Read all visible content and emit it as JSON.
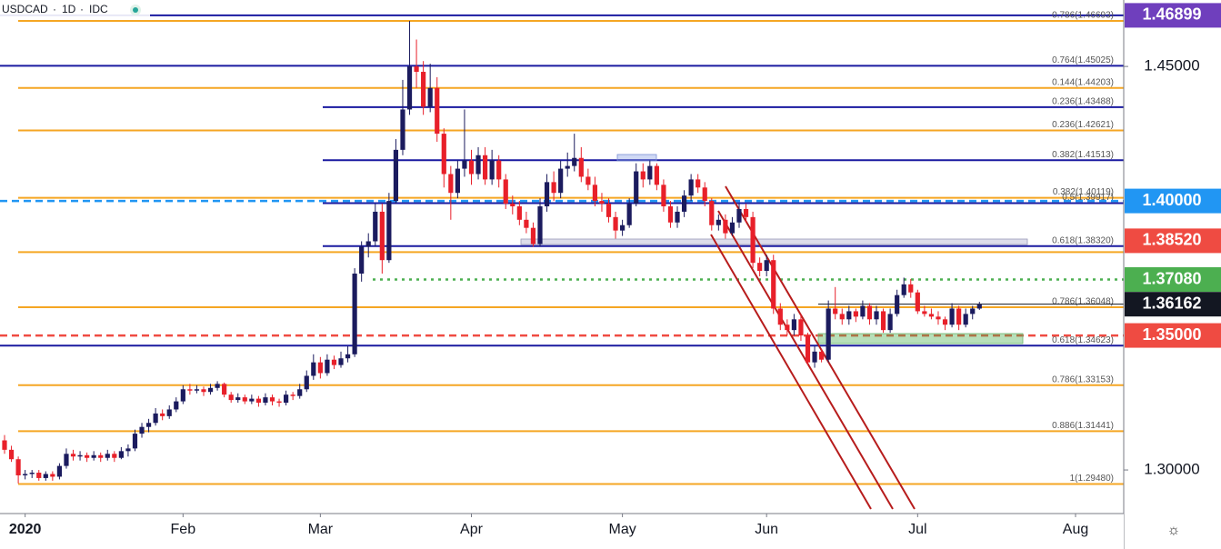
{
  "chart_data": {
    "type": "candlestick",
    "symbol": "USDCAD",
    "interval": "1D",
    "source": "IDC",
    "up_color": "#1b1b5e",
    "down_color": "#e8202a",
    "ylim": [
      1.2838,
      1.4747
    ],
    "yticks": [
      {
        "value": 1.45,
        "label": "1.45000"
      },
      {
        "value": 1.3,
        "label": "1.30000"
      }
    ],
    "categories": [
      null,
      null,
      null,
      "2020",
      null,
      null,
      null,
      null,
      null,
      null,
      null,
      null,
      null,
      null,
      null,
      null,
      null,
      null,
      null,
      null,
      null,
      null,
      null,
      null,
      null,
      null,
      "Feb",
      null,
      null,
      null,
      null,
      null,
      null,
      null,
      null,
      null,
      null,
      null,
      null,
      null,
      null,
      null,
      null,
      null,
      null,
      null,
      "Mar",
      null,
      null,
      null,
      null,
      null,
      null,
      null,
      null,
      null,
      null,
      null,
      null,
      null,
      null,
      null,
      null,
      null,
      null,
      null,
      null,
      null,
      "Apr",
      null,
      null,
      null,
      null,
      null,
      null,
      null,
      null,
      null,
      null,
      null,
      null,
      null,
      null,
      null,
      null,
      null,
      null,
      null,
      null,
      null,
      "May",
      null,
      null,
      null,
      null,
      null,
      null,
      null,
      null,
      null,
      null,
      null,
      null,
      null,
      null,
      null,
      null,
      null,
      null,
      null,
      null,
      "Jun",
      null,
      null,
      null,
      null,
      null,
      null,
      null,
      null,
      null,
      null,
      null,
      null,
      null,
      null,
      null,
      null,
      null,
      null,
      null,
      null,
      null,
      "Jul",
      null,
      null,
      null,
      null,
      null,
      null,
      null,
      null,
      null,
      null,
      null,
      null,
      null,
      null,
      null,
      null,
      null,
      null,
      null,
      null,
      null,
      null,
      "Aug"
    ],
    "ohlc": [
      [
        1.311,
        1.313,
        1.306,
        1.3075
      ],
      [
        1.3075,
        1.309,
        1.303,
        1.304
      ],
      [
        1.304,
        1.305,
        1.295,
        1.298
      ],
      [
        1.298,
        1.3,
        1.2965,
        1.2985
      ],
      [
        1.2985,
        1.3,
        1.297,
        1.299
      ],
      [
        1.299,
        1.3,
        1.296,
        1.297
      ],
      [
        1.297,
        1.2995,
        1.296,
        1.2985
      ],
      [
        1.2985,
        1.2995,
        1.296,
        1.2975
      ],
      [
        1.2975,
        1.3025,
        1.2965,
        1.3015
      ],
      [
        1.3015,
        1.308,
        1.3005,
        1.306
      ],
      [
        1.306,
        1.3075,
        1.3035,
        1.305
      ],
      [
        1.305,
        1.307,
        1.3035,
        1.3055
      ],
      [
        1.3055,
        1.3065,
        1.303,
        1.3045
      ],
      [
        1.3045,
        1.307,
        1.3035,
        1.3055
      ],
      [
        1.3055,
        1.3065,
        1.303,
        1.3045
      ],
      [
        1.3045,
        1.3075,
        1.3035,
        1.306
      ],
      [
        1.306,
        1.307,
        1.303,
        1.3045
      ],
      [
        1.3045,
        1.3085,
        1.304,
        1.307
      ],
      [
        1.307,
        1.3095,
        1.305,
        1.308
      ],
      [
        1.308,
        1.315,
        1.307,
        1.3135
      ],
      [
        1.3135,
        1.3175,
        1.312,
        1.316
      ],
      [
        1.316,
        1.319,
        1.314,
        1.3175
      ],
      [
        1.3175,
        1.323,
        1.3165,
        1.321
      ],
      [
        1.321,
        1.3225,
        1.3185,
        1.32
      ],
      [
        1.32,
        1.324,
        1.319,
        1.3225
      ],
      [
        1.3225,
        1.327,
        1.3215,
        1.3255
      ],
      [
        1.3255,
        1.3315,
        1.3245,
        1.33
      ],
      [
        1.33,
        1.332,
        1.328,
        1.3295
      ],
      [
        1.3295,
        1.3315,
        1.3285,
        1.33
      ],
      [
        1.33,
        1.331,
        1.3275,
        1.329
      ],
      [
        1.329,
        1.332,
        1.328,
        1.3305
      ],
      [
        1.3305,
        1.333,
        1.3295,
        1.332
      ],
      [
        1.332,
        1.3325,
        1.327,
        1.328
      ],
      [
        1.328,
        1.329,
        1.325,
        1.326
      ],
      [
        1.326,
        1.3285,
        1.325,
        1.327
      ],
      [
        1.327,
        1.328,
        1.3245,
        1.3255
      ],
      [
        1.3255,
        1.328,
        1.3245,
        1.3265
      ],
      [
        1.3265,
        1.3275,
        1.3235,
        1.325
      ],
      [
        1.325,
        1.3285,
        1.324,
        1.327
      ],
      [
        1.327,
        1.328,
        1.324,
        1.3255
      ],
      [
        1.3255,
        1.3265,
        1.3235,
        1.325
      ],
      [
        1.325,
        1.3295,
        1.324,
        1.328
      ],
      [
        1.328,
        1.329,
        1.326,
        1.3275
      ],
      [
        1.3275,
        1.332,
        1.3265,
        1.33
      ],
      [
        1.33,
        1.337,
        1.329,
        1.335
      ],
      [
        1.335,
        1.343,
        1.3335,
        1.34
      ],
      [
        1.34,
        1.342,
        1.334,
        1.336
      ],
      [
        1.336,
        1.343,
        1.335,
        1.341
      ],
      [
        1.341,
        1.3425,
        1.3375,
        1.339
      ],
      [
        1.339,
        1.344,
        1.338,
        1.3415
      ],
      [
        1.3415,
        1.346,
        1.34,
        1.343
      ],
      [
        1.343,
        1.375,
        1.342,
        1.373
      ],
      [
        1.373,
        1.385,
        1.37,
        1.383
      ],
      [
        1.383,
        1.388,
        1.379,
        1.385
      ],
      [
        1.385,
        1.399,
        1.383,
        1.396
      ],
      [
        1.396,
        1.399,
        1.373,
        1.378
      ],
      [
        1.378,
        1.403,
        1.377,
        1.4
      ],
      [
        1.4,
        1.423,
        1.399,
        1.419
      ],
      [
        1.419,
        1.445,
        1.417,
        1.434
      ],
      [
        1.434,
        1.4669,
        1.432,
        1.45
      ],
      [
        1.45,
        1.46,
        1.442,
        1.448
      ],
      [
        1.448,
        1.452,
        1.432,
        1.435
      ],
      [
        1.435,
        1.451,
        1.433,
        1.442
      ],
      [
        1.442,
        1.446,
        1.422,
        1.425
      ],
      [
        1.425,
        1.427,
        1.405,
        1.41
      ],
      [
        1.41,
        1.413,
        1.393,
        1.403
      ],
      [
        1.403,
        1.415,
        1.401,
        1.412
      ],
      [
        1.412,
        1.434,
        1.409,
        1.415
      ],
      [
        1.415,
        1.419,
        1.406,
        1.41
      ],
      [
        1.41,
        1.42,
        1.408,
        1.417
      ],
      [
        1.417,
        1.42,
        1.406,
        1.408
      ],
      [
        1.408,
        1.419,
        1.406,
        1.415
      ],
      [
        1.415,
        1.417,
        1.405,
        1.408
      ],
      [
        1.408,
        1.41,
        1.397,
        1.399
      ],
      [
        1.399,
        1.402,
        1.395,
        1.398
      ],
      [
        1.398,
        1.4,
        1.391,
        1.393
      ],
      [
        1.393,
        1.396,
        1.388,
        1.39
      ],
      [
        1.39,
        1.392,
        1.383,
        1.384
      ],
      [
        1.384,
        1.401,
        1.383,
        1.398
      ],
      [
        1.398,
        1.41,
        1.396,
        1.407
      ],
      [
        1.407,
        1.411,
        1.4,
        1.403
      ],
      [
        1.403,
        1.415,
        1.401,
        1.412
      ],
      [
        1.412,
        1.418,
        1.409,
        1.413
      ],
      [
        1.413,
        1.425,
        1.411,
        1.416
      ],
      [
        1.416,
        1.42,
        1.407,
        1.409
      ],
      [
        1.409,
        1.412,
        1.404,
        1.406
      ],
      [
        1.406,
        1.409,
        1.398,
        1.4
      ],
      [
        1.4,
        1.403,
        1.396,
        1.399
      ],
      [
        1.399,
        1.401,
        1.392,
        1.394
      ],
      [
        1.394,
        1.396,
        1.386,
        1.389
      ],
      [
        1.389,
        1.393,
        1.387,
        1.391
      ],
      [
        1.391,
        1.401,
        1.39,
        1.399
      ],
      [
        1.399,
        1.414,
        1.398,
        1.411
      ],
      [
        1.411,
        1.414,
        1.405,
        1.408
      ],
      [
        1.408,
        1.415,
        1.406,
        1.413
      ],
      [
        1.413,
        1.414,
        1.404,
        1.406
      ],
      [
        1.406,
        1.408,
        1.396,
        1.398
      ],
      [
        1.398,
        1.4,
        1.39,
        1.392
      ],
      [
        1.392,
        1.398,
        1.39,
        1.396
      ],
      [
        1.396,
        1.404,
        1.394,
        1.402
      ],
      [
        1.402,
        1.41,
        1.4,
        1.408
      ],
      [
        1.408,
        1.41,
        1.403,
        1.405
      ],
      [
        1.405,
        1.407,
        1.398,
        1.4
      ],
      [
        1.4,
        1.401,
        1.389,
        1.391
      ],
      [
        1.391,
        1.395,
        1.389,
        1.393
      ],
      [
        1.393,
        1.395,
        1.386,
        1.388
      ],
      [
        1.388,
        1.394,
        1.387,
        1.392
      ],
      [
        1.392,
        1.399,
        1.39,
        1.397
      ],
      [
        1.397,
        1.399,
        1.392,
        1.394
      ],
      [
        1.394,
        1.396,
        1.375,
        1.377
      ],
      [
        1.377,
        1.379,
        1.372,
        1.374
      ],
      [
        1.374,
        1.38,
        1.372,
        1.378
      ],
      [
        1.378,
        1.38,
        1.358,
        1.36
      ],
      [
        1.36,
        1.362,
        1.352,
        1.354
      ],
      [
        1.354,
        1.356,
        1.35,
        1.352
      ],
      [
        1.352,
        1.358,
        1.35,
        1.356
      ],
      [
        1.356,
        1.358,
        1.348,
        1.35
      ],
      [
        1.35,
        1.351,
        1.339,
        1.34
      ],
      [
        1.34,
        1.346,
        1.338,
        1.344
      ],
      [
        1.344,
        1.345,
        1.34,
        1.341
      ],
      [
        1.341,
        1.363,
        1.34,
        1.36
      ],
      [
        1.36,
        1.368,
        1.356,
        1.358
      ],
      [
        1.358,
        1.36,
        1.354,
        1.356
      ],
      [
        1.356,
        1.361,
        1.354,
        1.359
      ],
      [
        1.359,
        1.36,
        1.355,
        1.357
      ],
      [
        1.357,
        1.363,
        1.356,
        1.361
      ],
      [
        1.361,
        1.362,
        1.354,
        1.356
      ],
      [
        1.356,
        1.361,
        1.354,
        1.359
      ],
      [
        1.359,
        1.36,
        1.351,
        1.352
      ],
      [
        1.352,
        1.36,
        1.351,
        1.358
      ],
      [
        1.358,
        1.367,
        1.357,
        1.365
      ],
      [
        1.365,
        1.3715,
        1.364,
        1.369
      ],
      [
        1.369,
        1.371,
        1.364,
        1.366
      ],
      [
        1.366,
        1.367,
        1.358,
        1.359
      ],
      [
        1.359,
        1.361,
        1.357,
        1.358
      ],
      [
        1.358,
        1.36,
        1.356,
        1.357
      ],
      [
        1.357,
        1.359,
        1.354,
        1.356
      ],
      [
        1.356,
        1.357,
        1.352,
        1.354
      ],
      [
        1.354,
        1.362,
        1.353,
        1.36
      ],
      [
        1.36,
        1.361,
        1.352,
        1.354
      ],
      [
        1.354,
        1.36,
        1.353,
        1.358
      ],
      [
        1.358,
        1.361,
        1.356,
        1.36
      ],
      [
        1.36,
        1.3625,
        1.3595,
        1.3616
      ],
      null,
      null,
      null,
      null,
      null,
      null,
      null,
      null,
      null,
      null,
      null,
      null,
      null,
      null
    ],
    "levels": [
      {
        "value": 1.46899,
        "color": "#1a1aa0",
        "extended": true
      },
      {
        "value": 1.46693,
        "label": "0.786(1.46693)",
        "color": "#f5a623"
      },
      {
        "value": 1.45025,
        "label": "0.764(1.45025)",
        "color": "#1a1aa0",
        "extended": true
      },
      {
        "value": 1.44203,
        "label": "0.144(1.44203)",
        "color": "#f5a623"
      },
      {
        "value": 1.43488,
        "label": "0.236(1.43488)",
        "color": "#1a1aa0"
      },
      {
        "value": 1.42621,
        "label": "0.236(1.42621)",
        "color": "#f5a623"
      },
      {
        "value": 1.41513,
        "label": "0.382(1.41513)",
        "color": "#1a1aa0"
      },
      {
        "value": 1.40119,
        "label": "0.382(1.40119)",
        "color": "#f5a623"
      },
      {
        "value": 1.39917,
        "label": "0.5(1.39917)",
        "color": "#1a1aa0"
      },
      {
        "value": 1.3832,
        "label": "0.618(1.38320)",
        "color": "#1a1aa0"
      },
      {
        "value": 1.381,
        "color": "#f5a623"
      },
      {
        "value": 1.36048,
        "label": "0.786(1.36048)",
        "color": "#f5a623"
      },
      {
        "value": 1.34623,
        "label": "0.618(1.34623)",
        "color": "#1a1aa0",
        "extended": true
      },
      {
        "value": 1.33153,
        "label": "0.786(1.33153)",
        "color": "#f5a623"
      },
      {
        "value": 1.31441,
        "label": "0.886(1.31441)",
        "color": "#f5a623"
      },
      {
        "value": 1.2948,
        "label": "1(1.29480)",
        "color": "#f5a623"
      }
    ],
    "price_labels": [
      {
        "value": 1.46899,
        "label": "1.46899",
        "color": "#6f3fbd"
      },
      {
        "value": 1.4,
        "label": "1.40000",
        "color": "#2196f3",
        "line": "dashed"
      },
      {
        "value": 1.3852,
        "label": "1.38520",
        "color": "#ef4b42"
      },
      {
        "value": 1.3708,
        "label": "1.37080",
        "color": "#4caf50",
        "line": "dotted"
      },
      {
        "value": 1.36162,
        "label": "1.36162",
        "color": "#131722",
        "line": "solid"
      },
      {
        "value": 1.35,
        "label": "1.35000",
        "color": "#ef4b42",
        "line": "dashed"
      }
    ]
  }
}
